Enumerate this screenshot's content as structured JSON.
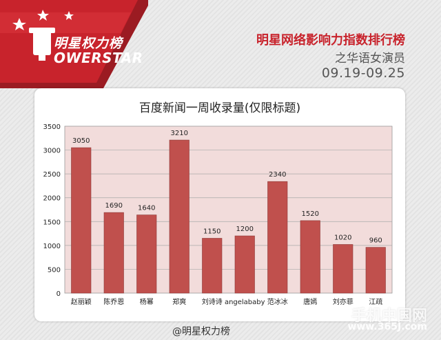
{
  "brand": {
    "logo_text": "明星权力榜",
    "logo_sub": "OWERSTAR"
  },
  "header": {
    "headline": "明星网络影响力指数排行榜",
    "subhead": "之华语女演员",
    "daterange": "09.19-09.25"
  },
  "footer": {
    "credit": "@明星权力榜"
  },
  "watermark": {
    "text": "手机中国网",
    "url": "www.365J.com"
  },
  "colors": {
    "brand_red": "#c8232c",
    "bar": "#c0504d",
    "plot_bg": "#f2dcdb"
  },
  "chart_data": {
    "type": "bar",
    "title": "百度新闻一周收录量(仅限标题)",
    "categories": [
      "赵丽颖",
      "陈乔恩",
      "杨幂",
      "郑爽",
      "刘诗诗",
      "angelababy",
      "范冰冰",
      "唐嫣",
      "刘亦菲",
      "江疏"
    ],
    "values": [
      3050,
      1690,
      1640,
      3210,
      1150,
      1200,
      2340,
      1520,
      1020,
      960
    ],
    "ylim": [
      0,
      3500
    ],
    "yticks": [
      0,
      500,
      1000,
      1500,
      2000,
      2500,
      3000,
      3500
    ],
    "xlabel": "",
    "ylabel": "",
    "grid": true,
    "data_labels": true
  }
}
